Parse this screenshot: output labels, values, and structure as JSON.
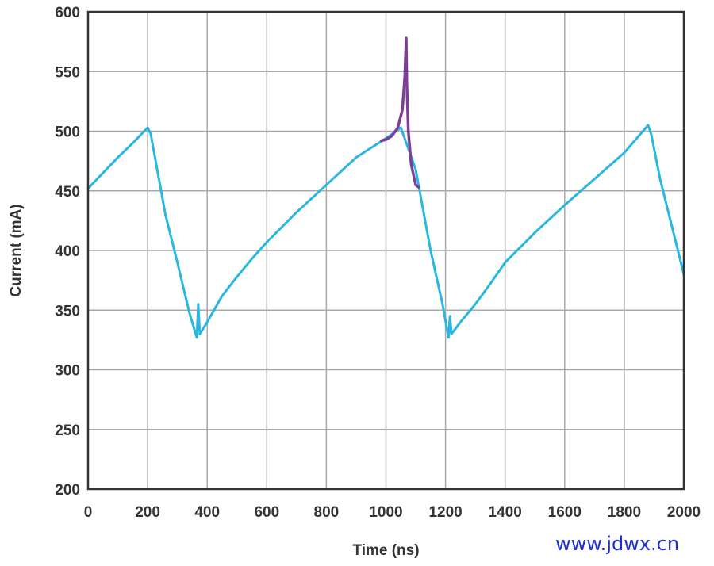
{
  "chart_data": {
    "type": "line",
    "xlabel": "Time (ns)",
    "ylabel": "Current (mA)",
    "xlim": [
      0,
      2000
    ],
    "ylim": [
      200,
      600
    ],
    "x_ticks": [
      0,
      200,
      400,
      600,
      800,
      1000,
      1200,
      1400,
      1600,
      1800,
      2000
    ],
    "y_ticks": [
      200,
      250,
      300,
      350,
      400,
      450,
      500,
      550,
      600
    ],
    "grid": true,
    "series": [
      {
        "color": "#29b7e0",
        "points": [
          [
            0,
            452
          ],
          [
            50,
            465
          ],
          [
            100,
            478
          ],
          [
            150,
            490
          ],
          [
            200,
            503
          ],
          [
            210,
            498
          ],
          [
            260,
            430
          ],
          [
            300,
            390
          ],
          [
            340,
            348
          ],
          [
            365,
            327
          ],
          [
            370,
            355
          ],
          [
            375,
            330
          ],
          [
            400,
            340
          ],
          [
            450,
            362
          ],
          [
            500,
            378
          ],
          [
            550,
            393
          ],
          [
            600,
            407
          ],
          [
            700,
            432
          ],
          [
            800,
            455
          ],
          [
            900,
            478
          ],
          [
            1000,
            494
          ],
          [
            1050,
            503
          ],
          [
            1060,
            496
          ],
          [
            1100,
            468
          ],
          [
            1150,
            400
          ],
          [
            1190,
            355
          ],
          [
            1210,
            327
          ],
          [
            1215,
            345
          ],
          [
            1220,
            330
          ],
          [
            1250,
            340
          ],
          [
            1300,
            355
          ],
          [
            1350,
            372
          ],
          [
            1400,
            390
          ],
          [
            1500,
            415
          ],
          [
            1600,
            438
          ],
          [
            1700,
            460
          ],
          [
            1800,
            482
          ],
          [
            1880,
            505
          ],
          [
            1890,
            498
          ],
          [
            1920,
            460
          ],
          [
            1960,
            420
          ],
          [
            2000,
            380
          ]
        ]
      },
      {
        "color": "#7b3f98",
        "points": [
          [
            985,
            492
          ],
          [
            1000,
            493
          ],
          [
            1020,
            496
          ],
          [
            1040,
            503
          ],
          [
            1055,
            518
          ],
          [
            1063,
            545
          ],
          [
            1068,
            578
          ],
          [
            1070,
            540
          ],
          [
            1075,
            500
          ],
          [
            1085,
            472
          ],
          [
            1100,
            455
          ],
          [
            1110,
            453
          ]
        ]
      }
    ]
  },
  "watermark": "www.jdwx.cn"
}
